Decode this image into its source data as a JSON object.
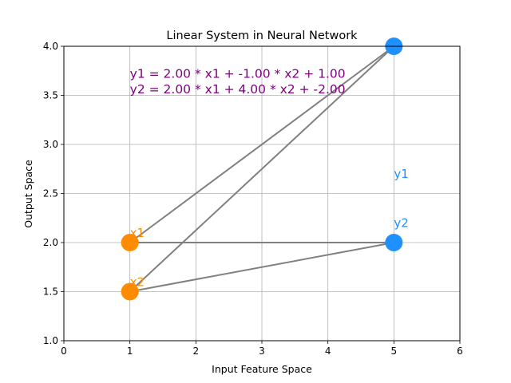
{
  "chart_data": {
    "type": "scatter",
    "title": "Linear System in Neural Network",
    "xlabel": "Input Feature Space",
    "ylabel": "Output Space",
    "xlim": [
      0,
      6
    ],
    "ylim": [
      1.0,
      4.0
    ],
    "xticks": [
      "0",
      "1",
      "2",
      "3",
      "4",
      "5",
      "6"
    ],
    "yticks": [
      "1.0",
      "1.5",
      "2.0",
      "2.5",
      "3.0",
      "3.5",
      "4.0"
    ],
    "grid": true,
    "nodes": [
      {
        "name": "x1",
        "x": 1,
        "y": 2.0,
        "role": "input",
        "color": "#ff8c00"
      },
      {
        "name": "x2",
        "x": 1,
        "y": 1.5,
        "role": "input",
        "color": "#ff8c00"
      },
      {
        "name": "y1",
        "x": 5,
        "y": 4.0,
        "role": "output",
        "color": "#1e90ff",
        "label_x": 5,
        "label_y": 2.6
      },
      {
        "name": "y2",
        "x": 5,
        "y": 2.0,
        "role": "output",
        "color": "#1e90ff",
        "label_x": 5,
        "label_y": 2.1
      }
    ],
    "edges": [
      {
        "from": "x1",
        "to": "y1"
      },
      {
        "from": "x1",
        "to": "y2"
      },
      {
        "from": "x2",
        "to": "y1"
      },
      {
        "from": "x2",
        "to": "y2"
      }
    ],
    "edge_color": "#808080",
    "annotations": [
      {
        "text": "y1 = 2.00 * x1 + -1.00 * x2 + 1.00",
        "x": 1,
        "y": 3.68,
        "color": "#800080"
      },
      {
        "text": "y2 = 2.00 * x1 + 4.00 * x2 + -2.00",
        "x": 1,
        "y": 3.52,
        "color": "#800080"
      }
    ]
  }
}
